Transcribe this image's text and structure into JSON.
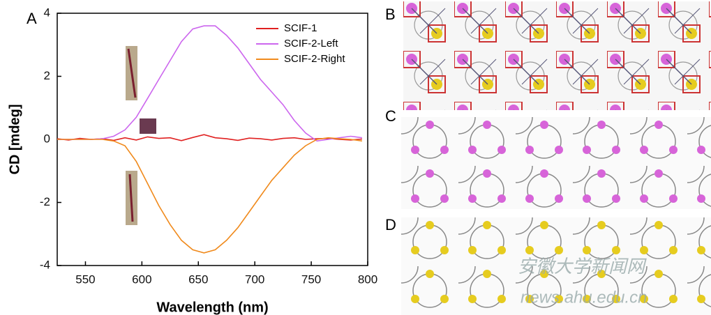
{
  "chart_data": {
    "type": "line",
    "xlabel": "Wavelength (nm)",
    "ylabel": "CD [mdeg]",
    "xlim": [
      525,
      800
    ],
    "xticks": [
      550,
      600,
      650,
      700,
      750,
      800
    ],
    "ylim": [
      -4,
      4
    ],
    "yticks": [
      -4,
      -2,
      0,
      2,
      4
    ],
    "legend": "upper right",
    "x": [
      525,
      535,
      545,
      555,
      565,
      575,
      585,
      595,
      605,
      615,
      625,
      635,
      645,
      655,
      665,
      675,
      685,
      695,
      705,
      715,
      725,
      735,
      745,
      755,
      765,
      775,
      785,
      795
    ],
    "series": [
      {
        "name": "SCIF-1",
        "color": "#e02020",
        "values": [
          0.02,
          -0.02,
          0.03,
          0,
          0.02,
          -0.03,
          0.05,
          -0.02,
          0.08,
          0.03,
          0.05,
          -0.04,
          0.06,
          0.15,
          0.05,
          0.02,
          -0.03,
          0.04,
          0.02,
          -0.02,
          0.03,
          0.05,
          0,
          0.02,
          0.03,
          0,
          -0.02,
          0.01
        ]
      },
      {
        "name": "SCIF-2-Left",
        "color": "#cc66ee",
        "values": [
          0,
          0,
          0,
          0,
          0.02,
          0.1,
          0.3,
          0.7,
          1.3,
          1.9,
          2.5,
          3.1,
          3.5,
          3.6,
          3.6,
          3.3,
          2.9,
          2.4,
          1.9,
          1.5,
          1.1,
          0.6,
          0.2,
          -0.05,
          0,
          0.05,
          0.1,
          0.05
        ]
      },
      {
        "name": "SCIF-2-Right",
        "color": "#f08a1c",
        "values": [
          0,
          0,
          0,
          0,
          0,
          -0.05,
          -0.2,
          -0.7,
          -1.4,
          -2.1,
          -2.7,
          -3.2,
          -3.5,
          -3.6,
          -3.5,
          -3.2,
          -2.8,
          -2.3,
          -1.8,
          -1.3,
          -0.9,
          -0.5,
          -0.2,
          0,
          0.05,
          0.02,
          0,
          -0.05
        ]
      }
    ]
  },
  "panels": {
    "a": "A",
    "b": "B",
    "c": "C",
    "d": "D"
  },
  "watermark": {
    "name": "安徽大学新闻网",
    "url": "news.ahu.edu.cn"
  }
}
